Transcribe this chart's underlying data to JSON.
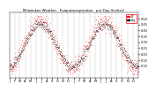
{
  "title": "Milwaukee Weather   Evapotranspiration   per Day (Inches)",
  "bg_color": "#ffffff",
  "plot_bg": "#ffffff",
  "grid_color": "#aaaaaa",
  "red_color": "#ff0000",
  "black_color": "#000000",
  "ylim": [
    0.0,
    0.55
  ],
  "yticks": [
    0.1,
    0.15,
    0.2,
    0.25,
    0.3,
    0.35,
    0.4,
    0.45,
    0.5
  ],
  "num_points": 730,
  "legend_label_red": "ET",
  "legend_label_black": "Avg",
  "vline_positions": [
    31,
    59,
    90,
    120,
    151,
    181,
    212,
    243,
    273,
    304,
    334,
    365,
    396,
    424,
    455,
    485,
    516,
    546,
    577,
    608,
    638,
    669,
    699
  ],
  "xtick_positions": [
    0,
    31,
    59,
    90,
    120,
    151,
    181,
    212,
    243,
    273,
    304,
    334,
    365,
    396,
    424,
    455,
    485,
    516,
    546,
    577,
    608,
    638,
    669,
    699
  ],
  "xtick_labels": [
    "J",
    "F",
    "M",
    "A",
    "M",
    "J",
    "J",
    "A",
    "S",
    "O",
    "N",
    "D",
    "J",
    "F",
    "M",
    "A",
    "M",
    "J",
    "J",
    "A",
    "S",
    "O",
    "N",
    "D"
  ]
}
